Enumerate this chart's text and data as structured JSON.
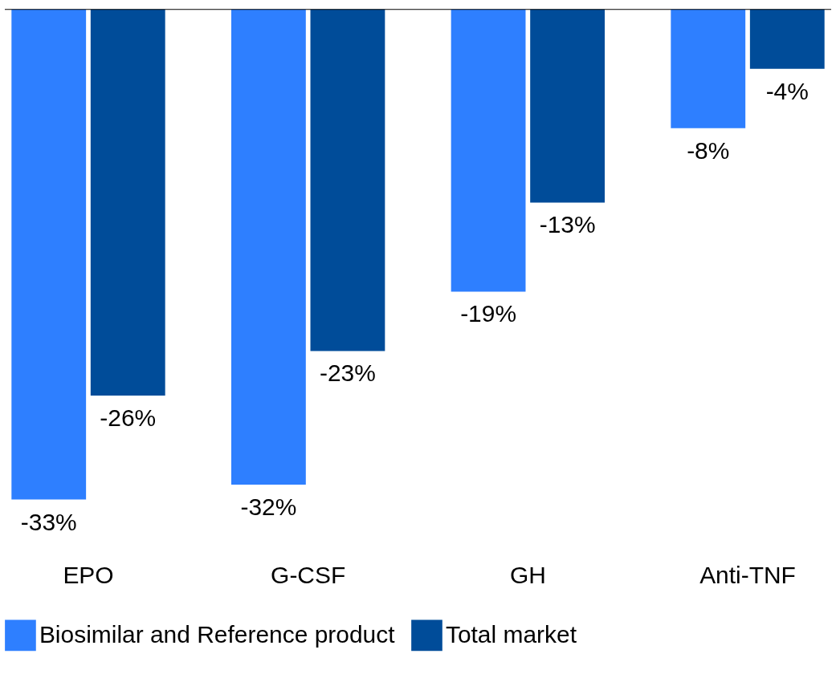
{
  "chart_data": {
    "type": "bar",
    "categories": [
      "EPO",
      "G-CSF",
      "GH",
      "Anti-TNF"
    ],
    "series": [
      {
        "name": "Biosimilar and Reference product",
        "color": "#2e7fff",
        "values": [
          -33,
          -32,
          -19,
          -8
        ],
        "value_labels": [
          "-33%",
          "-32%",
          "-19%",
          "-8%"
        ]
      },
      {
        "name": "Total market",
        "color": "#004c99",
        "values": [
          -26,
          -23,
          -13,
          -4
        ],
        "value_labels": [
          "-26%",
          "-23%",
          "-13%",
          "-4%"
        ]
      }
    ],
    "legend": "bottom",
    "grid": false
  }
}
